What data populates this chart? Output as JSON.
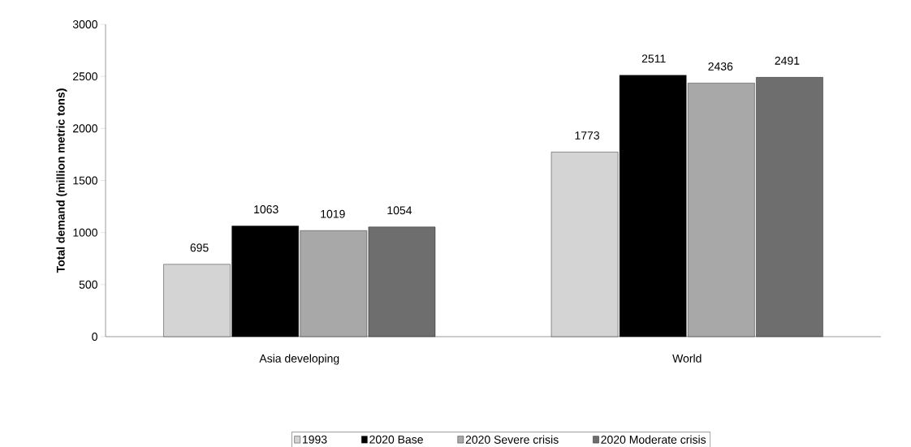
{
  "chart_data": {
    "type": "bar",
    "ylabel": "Total demand (million metric tons)",
    "categories": [
      "Asia developing",
      "World"
    ],
    "series": [
      {
        "name": "1993",
        "color": "#d4d4d4",
        "values": [
          695,
          1773
        ]
      },
      {
        "name": "2020 Base",
        "color": "#000000",
        "values": [
          1063,
          2511
        ]
      },
      {
        "name": "2020 Severe crisis",
        "color": "#a8a8a8",
        "values": [
          1019,
          2436
        ]
      },
      {
        "name": "2020 Moderate crisis",
        "color": "#6e6e6e",
        "values": [
          1054,
          2491
        ]
      }
    ],
    "ylim": [
      0,
      3000
    ],
    "yticks": [
      0,
      500,
      1000,
      1500,
      2000,
      2500,
      3000
    ],
    "data_labels": true,
    "legend": "bottom",
    "grid": false
  }
}
